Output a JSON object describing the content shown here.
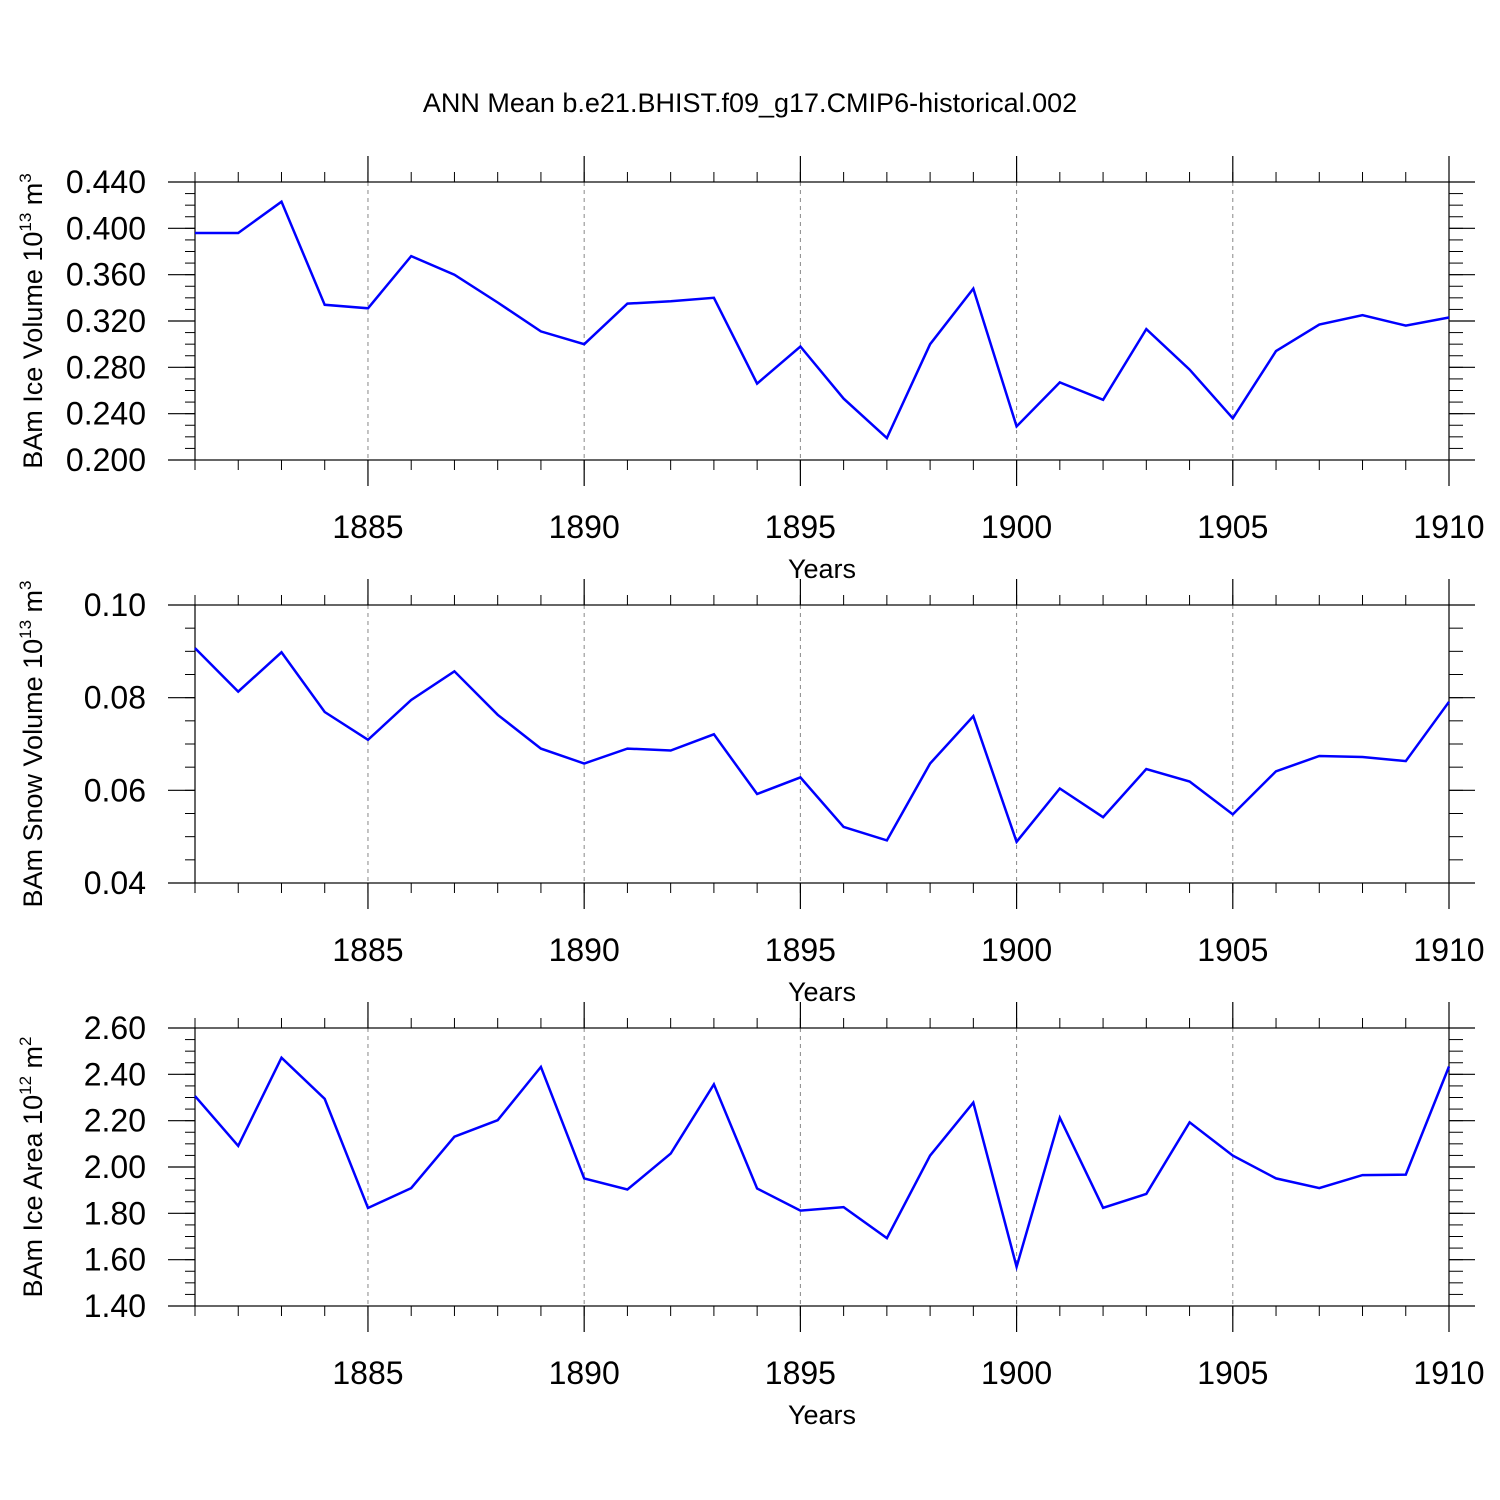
{
  "title": "ANN Mean b.e21.BHIST.f09_g17.CMIP6-historical.002",
  "colors": {
    "line": "#0000ff",
    "axis": "#000000",
    "grid": "#888888"
  },
  "chart_data": [
    {
      "type": "line",
      "xlabel": "Years",
      "ylabel": {
        "main": "BAm Ice Volume 10",
        "exponent": "13",
        "unit": " m",
        "unit_exponent": "3"
      },
      "xlim": [
        1881,
        1910
      ],
      "ylim": [
        0.2,
        0.44
      ],
      "xticks": [
        1885,
        1890,
        1895,
        1900,
        1905,
        1910
      ],
      "yticks": [
        0.2,
        0.24,
        0.28,
        0.32,
        0.36,
        0.4,
        0.44
      ],
      "ytick_labels": [
        "0.200",
        "0.240",
        "0.280",
        "0.320",
        "0.360",
        "0.400",
        "0.440"
      ],
      "grid": "dashed vertical at major x ticks",
      "x": [
        1881,
        1882,
        1883,
        1884,
        1885,
        1886,
        1887,
        1888,
        1889,
        1890,
        1891,
        1892,
        1893,
        1894,
        1895,
        1896,
        1897,
        1898,
        1899,
        1900,
        1901,
        1902,
        1903,
        1904,
        1905,
        1906,
        1907,
        1908,
        1909,
        1910
      ],
      "values": [
        0.396,
        0.396,
        0.423,
        0.334,
        0.331,
        0.376,
        0.36,
        0.336,
        0.311,
        0.3,
        0.335,
        0.337,
        0.34,
        0.266,
        0.298,
        0.253,
        0.219,
        0.3,
        0.348,
        0.229,
        0.267,
        0.252,
        0.313,
        0.278,
        0.236,
        0.294,
        0.317,
        0.325,
        0.316,
        0.323
      ]
    },
    {
      "type": "line",
      "xlabel": "Years",
      "ylabel": {
        "main": "BAm Snow Volume 10",
        "exponent": "13",
        "unit": " m",
        "unit_exponent": "3"
      },
      "xlim": [
        1881,
        1910
      ],
      "ylim": [
        0.04,
        0.1
      ],
      "xticks": [
        1885,
        1890,
        1895,
        1900,
        1905,
        1910
      ],
      "yticks": [
        0.04,
        0.06,
        0.08,
        0.1
      ],
      "ytick_labels": [
        "0.04",
        "0.06",
        "0.08",
        "0.10"
      ],
      "grid": "dashed vertical at major x ticks",
      "x": [
        1881,
        1882,
        1883,
        1884,
        1885,
        1886,
        1887,
        1888,
        1889,
        1890,
        1891,
        1892,
        1893,
        1894,
        1895,
        1896,
        1897,
        1898,
        1899,
        1900,
        1901,
        1902,
        1903,
        1904,
        1905,
        1906,
        1907,
        1908,
        1909,
        1910
      ],
      "values": [
        0.0907,
        0.0813,
        0.0898,
        0.0769,
        0.0709,
        0.0795,
        0.0857,
        0.0763,
        0.069,
        0.0658,
        0.069,
        0.0686,
        0.0721,
        0.0592,
        0.0628,
        0.0521,
        0.0492,
        0.0658,
        0.076,
        0.0489,
        0.0604,
        0.0542,
        0.0646,
        0.0619,
        0.0548,
        0.0641,
        0.0674,
        0.0672,
        0.0663,
        0.0791
      ]
    },
    {
      "type": "line",
      "xlabel": "Years",
      "ylabel": {
        "main": "BAm Ice Area 10",
        "exponent": "12",
        "unit": " m",
        "unit_exponent": "2"
      },
      "xlim": [
        1881,
        1910
      ],
      "ylim": [
        1.4,
        2.6
      ],
      "xticks": [
        1885,
        1890,
        1895,
        1900,
        1905,
        1910
      ],
      "yticks": [
        1.4,
        1.6,
        1.8,
        2.0,
        2.2,
        2.4,
        2.6
      ],
      "ytick_labels": [
        "1.40",
        "1.60",
        "1.80",
        "2.00",
        "2.20",
        "2.40",
        "2.60"
      ],
      "grid": "dashed vertical at major x ticks",
      "x": [
        1881,
        1882,
        1883,
        1884,
        1885,
        1886,
        1887,
        1888,
        1889,
        1890,
        1891,
        1892,
        1893,
        1894,
        1895,
        1896,
        1897,
        1898,
        1899,
        1900,
        1901,
        1902,
        1903,
        1904,
        1905,
        1906,
        1907,
        1908,
        1909,
        1910
      ],
      "values": [
        2.306,
        2.091,
        2.472,
        2.294,
        1.823,
        1.909,
        2.131,
        2.202,
        2.432,
        1.951,
        1.903,
        2.058,
        2.357,
        1.907,
        1.812,
        1.827,
        1.693,
        2.049,
        2.278,
        1.569,
        2.213,
        1.824,
        1.884,
        2.193,
        2.049,
        1.951,
        1.909,
        1.965,
        1.967,
        2.434
      ]
    }
  ]
}
